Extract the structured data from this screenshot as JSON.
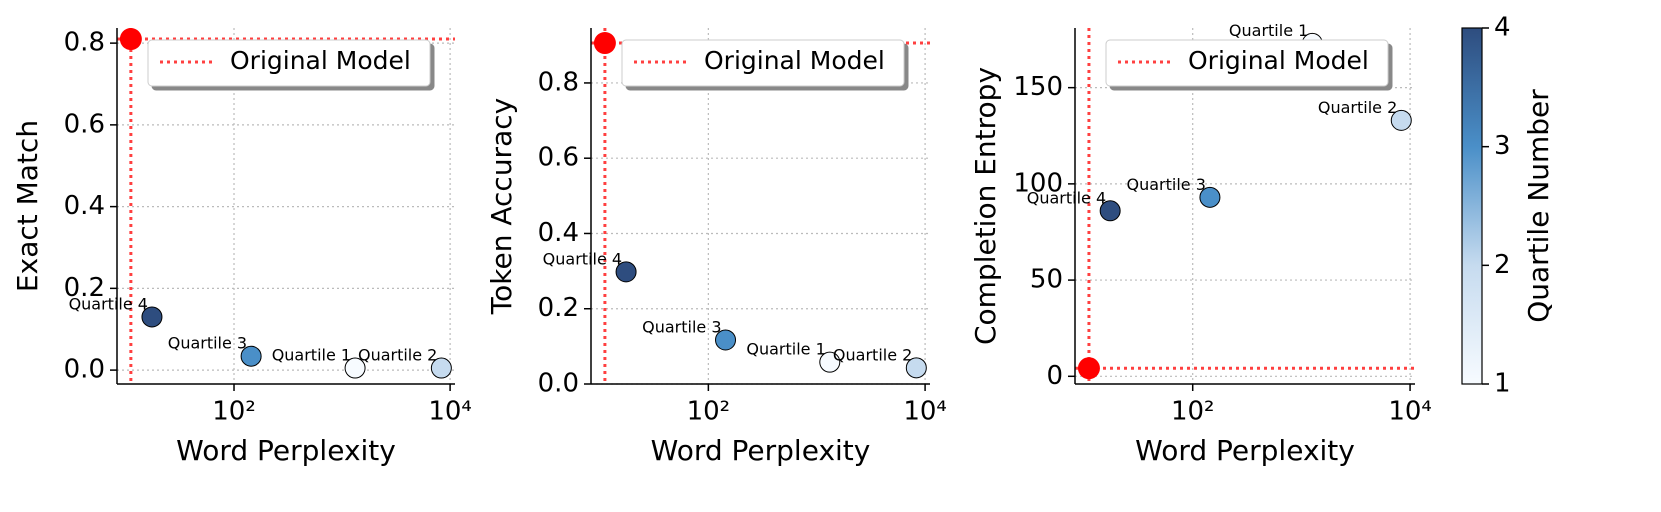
{
  "chart_data": [
    {
      "type": "scatter",
      "x_label": "Word Perplexity",
      "y_label": "Exact Match",
      "xscale": "log",
      "xlim": [
        8.26,
        11100
      ],
      "ylim": [
        -0.034,
        0.837
      ],
      "xticks": [
        {
          "value": 100,
          "label": "10²"
        },
        {
          "value": 10000,
          "label": "10⁴"
        }
      ],
      "yticks": [
        {
          "value": 0,
          "label": "0.0"
        },
        0.2,
        0.4,
        0.6,
        0.8
      ],
      "grid": true,
      "point_labels": [
        "Quartile 1",
        "Quartile 2",
        "Quartile 3",
        "Quartile 4"
      ],
      "point_colors": [
        "#f7fbff",
        "#c6dbef",
        "#4a8fc8",
        "#2e4d7f"
      ],
      "x": [
        1320,
        8300,
        144,
        17.4
      ],
      "values": [
        0.005,
        0.005,
        0.034,
        0.13
      ],
      "reference": {
        "name": "Original Model",
        "x": 11.1,
        "y": 0.81,
        "color": "#ff0000"
      }
    },
    {
      "type": "scatter",
      "x_label": "Word Perplexity",
      "y_label": "Token Accuracy",
      "xscale": "log",
      "xlim": [
        8.26,
        11100
      ],
      "ylim": [
        0,
        0.946
      ],
      "xticks": [
        {
          "value": 100,
          "label": "10²"
        },
        {
          "value": 10000,
          "label": "10⁴"
        }
      ],
      "yticks": [
        {
          "value": 0,
          "label": "0.0"
        },
        0.2,
        0.4,
        0.6,
        0.8
      ],
      "grid": true,
      "point_labels": [
        "Quartile 1",
        "Quartile 2",
        "Quartile 3",
        "Quartile 4"
      ],
      "point_colors": [
        "#f7fbff",
        "#c6dbef",
        "#4a8fc8",
        "#2e4d7f"
      ],
      "x": [
        1320,
        8300,
        144,
        17.4
      ],
      "values": [
        0.058,
        0.043,
        0.117,
        0.298
      ],
      "reference": {
        "name": "Original Model",
        "x": 11.1,
        "y": 0.906,
        "color": "#ff0000"
      }
    },
    {
      "type": "scatter",
      "x_label": "Word Perplexity",
      "y_label": "Completion Entropy",
      "xscale": "log",
      "xlim": [
        8.26,
        11100
      ],
      "ylim": [
        -4,
        181
      ],
      "xticks": [
        {
          "value": 100,
          "label": "10²"
        },
        {
          "value": 10000,
          "label": "10⁴"
        }
      ],
      "yticks": [
        0,
        50,
        100,
        150
      ],
      "grid": true,
      "point_labels": [
        "Quartile 1",
        "Quartile 2",
        "Quartile 3",
        "Quartile 4"
      ],
      "point_colors": [
        "#f7fbff",
        "#c6dbef",
        "#4a8fc8",
        "#2e4d7f"
      ],
      "x": [
        1260,
        8300,
        144,
        17.4
      ],
      "values": [
        173,
        133,
        93,
        86
      ],
      "reference": {
        "name": "Original Model",
        "x": 11.1,
        "y": 4.2,
        "color": "#ff0000"
      }
    }
  ],
  "colorbar": {
    "label": "Quartile Number",
    "lim": [
      1,
      4
    ],
    "ticks": [
      1,
      2,
      3,
      4
    ],
    "colors": [
      "#f7fbff",
      "#c6dbef",
      "#4a8fc8",
      "#2e4d7f"
    ]
  }
}
